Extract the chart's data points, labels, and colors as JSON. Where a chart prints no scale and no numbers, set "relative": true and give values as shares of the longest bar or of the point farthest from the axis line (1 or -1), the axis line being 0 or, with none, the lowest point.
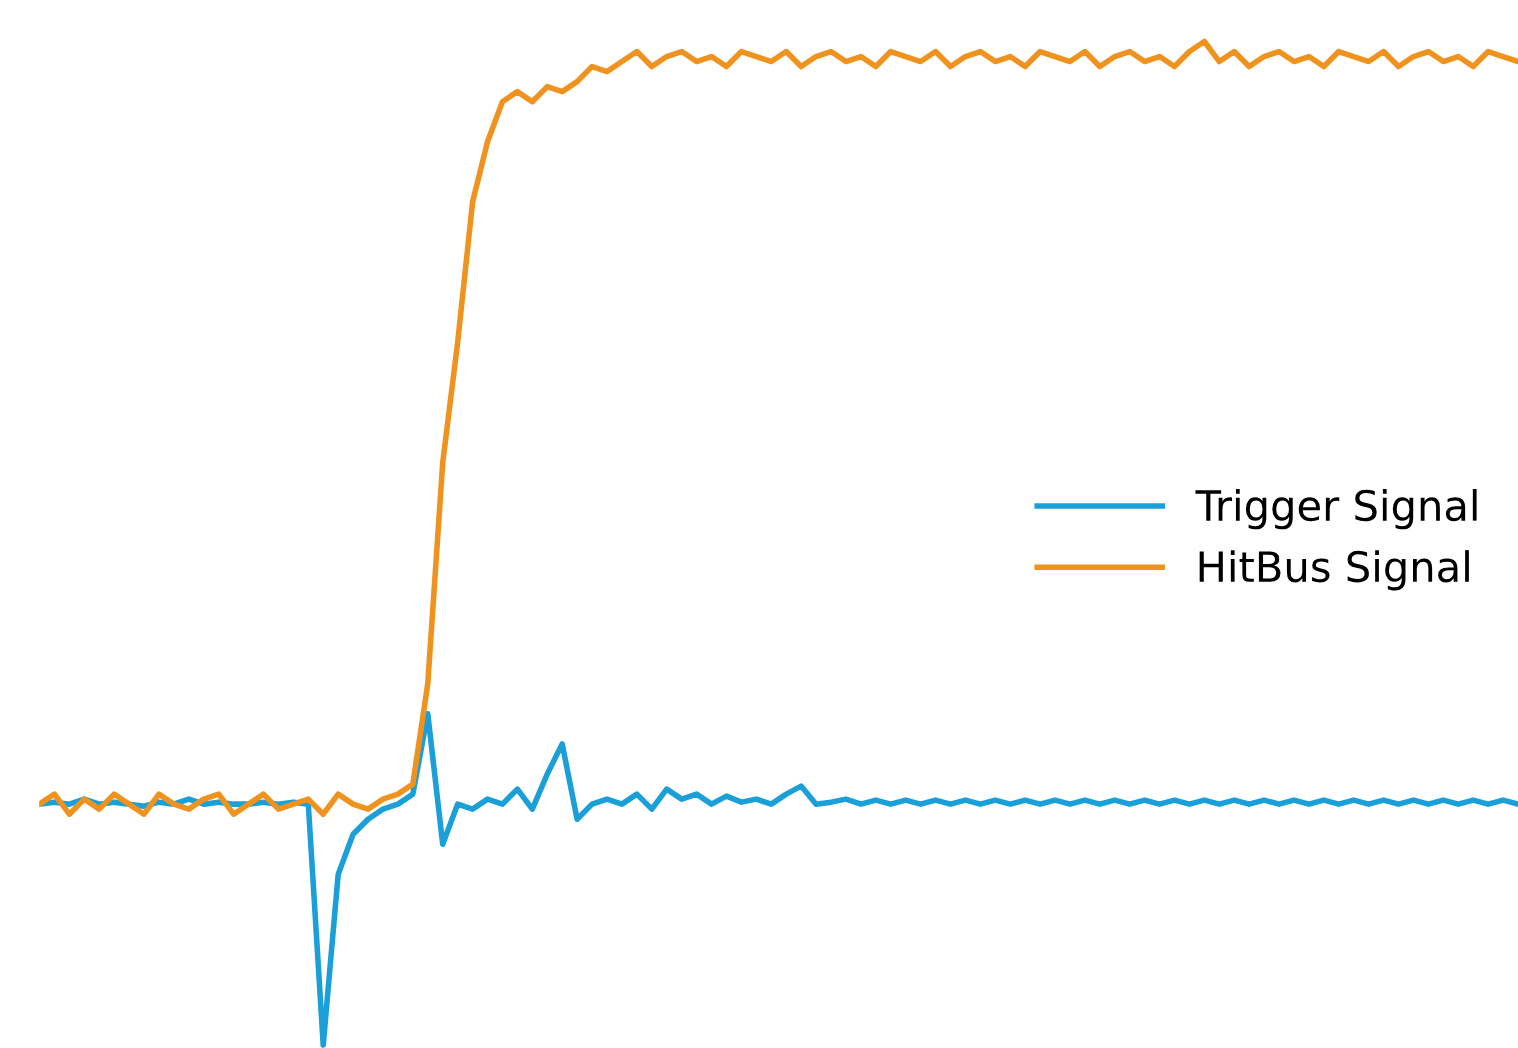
{
  "chart_data": {
    "type": "line",
    "relative": true,
    "legend": "right",
    "categories": [
      null,
      null,
      null,
      null,
      null,
      null,
      null,
      null,
      null,
      null,
      null,
      null,
      null,
      null,
      null,
      null,
      null,
      null,
      null,
      null,
      null,
      null,
      null,
      null,
      null,
      null,
      null,
      null,
      null,
      null,
      null,
      null,
      null,
      null,
      null,
      null,
      null,
      null,
      null,
      null,
      null,
      null,
      null,
      null,
      null,
      null,
      null,
      null,
      null,
      null,
      null,
      null,
      null,
      null,
      null,
      null,
      null,
      null,
      null,
      null,
      null,
      null,
      null,
      null,
      null,
      null,
      null,
      null,
      null,
      null,
      null,
      null,
      null,
      null,
      null,
      null,
      null,
      null,
      null,
      null,
      null,
      null,
      null,
      null,
      null,
      null,
      null,
      null,
      null,
      null,
      null,
      null,
      null,
      null,
      null,
      null,
      null,
      null,
      null,
      null
    ],
    "series": [
      {
        "name": "Trigger Signal",
        "color": "#1a9fd9",
        "values": [
          0.24,
          0.242,
          0.24,
          0.245,
          0.24,
          0.242,
          0.24,
          0.238,
          0.242,
          0.24,
          0.245,
          0.24,
          0.242,
          0.24,
          0.24,
          0.242,
          0.24,
          0.242,
          0.24,
          0,
          0.17,
          0.21,
          0.225,
          0.235,
          0.24,
          0.25,
          0.33,
          0.2,
          0.24,
          0.235,
          0.245,
          0.24,
          0.255,
          0.235,
          0.27,
          0.3,
          0.225,
          0.24,
          0.245,
          0.24,
          0.25,
          0.235,
          0.255,
          0.245,
          0.25,
          0.24,
          0.248,
          0.242,
          0.245,
          0.24,
          0.25,
          0.258,
          0.24,
          0.242,
          0.245,
          0.24,
          0.244,
          0.24,
          0.244,
          0.24,
          0.244,
          0.24,
          0.244,
          0.24,
          0.244,
          0.24,
          0.244,
          0.24,
          0.244,
          0.24,
          0.244,
          0.24,
          0.244,
          0.24,
          0.244,
          0.24,
          0.244,
          0.24,
          0.244,
          0.24,
          0.244,
          0.24,
          0.244,
          0.24,
          0.244,
          0.24,
          0.244,
          0.24,
          0.244,
          0.24,
          0.244,
          0.24,
          0.244,
          0.24,
          0.244,
          0.24,
          0.244,
          0.24,
          0.244,
          0.24
        ]
      },
      {
        "name": "HitBus Signal",
        "color": "#f0921e",
        "values": [
          0.24,
          0.25,
          0.23,
          0.245,
          0.235,
          0.25,
          0.24,
          0.23,
          0.25,
          0.24,
          0.235,
          0.245,
          0.25,
          0.23,
          0.24,
          0.25,
          0.235,
          0.24,
          0.245,
          0.23,
          0.25,
          0.24,
          0.235,
          0.245,
          0.25,
          0.26,
          0.36,
          0.58,
          0.7,
          0.84,
          0.9,
          0.94,
          0.95,
          0.94,
          0.955,
          0.95,
          0.96,
          0.975,
          0.97,
          0.98,
          0.99,
          0.975,
          0.985,
          0.99,
          0.98,
          0.985,
          0.975,
          0.99,
          0.985,
          0.98,
          0.99,
          0.975,
          0.985,
          0.99,
          0.98,
          0.985,
          0.975,
          0.99,
          0.985,
          0.98,
          0.99,
          0.975,
          0.985,
          0.99,
          0.98,
          0.985,
          0.975,
          0.99,
          0.985,
          0.98,
          0.99,
          0.975,
          0.985,
          0.99,
          0.98,
          0.985,
          0.975,
          0.99,
          1,
          0.98,
          0.99,
          0.975,
          0.985,
          0.99,
          0.98,
          0.985,
          0.975,
          0.99,
          0.985,
          0.98,
          0.99,
          0.975,
          0.985,
          0.99,
          0.98,
          0.985,
          0.975,
          0.99,
          0.985,
          0.98
        ]
      }
    ]
  }
}
